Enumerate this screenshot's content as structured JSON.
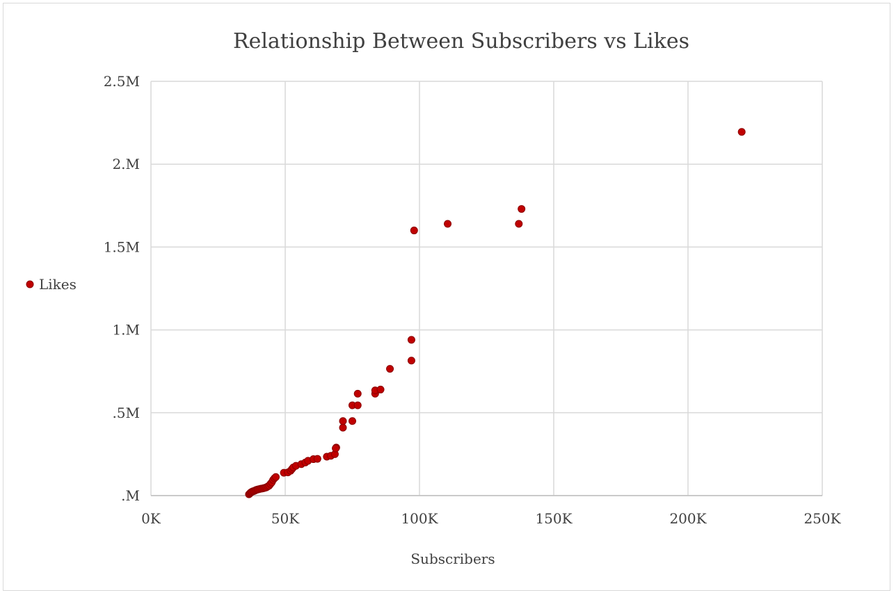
{
  "chart_data": {
    "type": "scatter",
    "title": "Relationship Between Subscribers vs Likes",
    "xlabel": "Subscribers",
    "ylabel": "",
    "xlim": [
      0,
      250000
    ],
    "ylim": [
      0,
      2500000
    ],
    "x_ticks": [
      0,
      50000,
      100000,
      150000,
      200000,
      250000
    ],
    "x_tick_labels": [
      "0K",
      "50K",
      "100K",
      "150K",
      "200K",
      "250K"
    ],
    "y_ticks": [
      0,
      500000,
      1000000,
      1500000,
      2000000,
      2500000
    ],
    "y_tick_labels": [
      ".M",
      ".5M",
      "1.M",
      "1.5M",
      "2.M",
      "2.5M"
    ],
    "grid": true,
    "legend_position": "left",
    "marker_color": "#c00000",
    "marker_edge_color": "#8b0000",
    "series": [
      {
        "name": "Likes",
        "points": [
          [
            36500,
            8000
          ],
          [
            36800,
            12000
          ],
          [
            37000,
            16000
          ],
          [
            37300,
            20000
          ],
          [
            37600,
            23000
          ],
          [
            38000,
            26000
          ],
          [
            38400,
            28000
          ],
          [
            38800,
            31000
          ],
          [
            39200,
            34000
          ],
          [
            39600,
            36000
          ],
          [
            40000,
            38000
          ],
          [
            40500,
            40000
          ],
          [
            41000,
            42000
          ],
          [
            41500,
            43000
          ],
          [
            42000,
            45000
          ],
          [
            42500,
            47000
          ],
          [
            43000,
            50000
          ],
          [
            43500,
            55000
          ],
          [
            44000,
            60000
          ],
          [
            44500,
            70000
          ],
          [
            45000,
            80000
          ],
          [
            45500,
            95000
          ],
          [
            46000,
            105000
          ],
          [
            46500,
            112000
          ],
          [
            49500,
            138000
          ],
          [
            51000,
            140000
          ],
          [
            52000,
            150000
          ],
          [
            52500,
            160000
          ],
          [
            53000,
            170000
          ],
          [
            54000,
            180000
          ],
          [
            56000,
            190000
          ],
          [
            57500,
            200000
          ],
          [
            58500,
            210000
          ],
          [
            60500,
            220000
          ],
          [
            62000,
            222000
          ],
          [
            65500,
            235000
          ],
          [
            67000,
            240000
          ],
          [
            68500,
            250000
          ],
          [
            69000,
            290000
          ],
          [
            68800,
            285000
          ],
          [
            71500,
            410000
          ],
          [
            71500,
            450000
          ],
          [
            75000,
            450000
          ],
          [
            75000,
            545000
          ],
          [
            77000,
            545000
          ],
          [
            77000,
            615000
          ],
          [
            83500,
            615000
          ],
          [
            83500,
            635000
          ],
          [
            85500,
            640000
          ],
          [
            89000,
            765000
          ],
          [
            97000,
            815000
          ],
          [
            97000,
            940000
          ],
          [
            98000,
            1600000
          ],
          [
            110500,
            1640000
          ],
          [
            137000,
            1640000
          ],
          [
            138000,
            1730000
          ],
          [
            220000,
            2195000
          ]
        ]
      }
    ]
  }
}
